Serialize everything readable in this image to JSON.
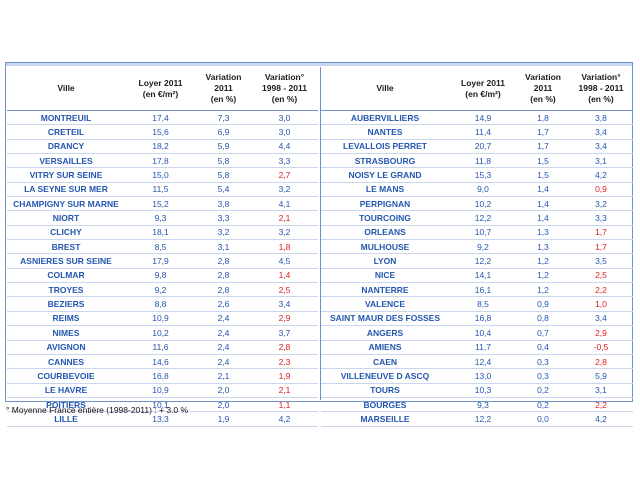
{
  "headers": {
    "ville": "Ville",
    "loyer": [
      "Loyer 2011",
      "(en €/m²)"
    ],
    "variation": [
      "Variation",
      "2011",
      "(en %)"
    ],
    "variation98": [
      "Variation°",
      "1998 - 2011",
      "(en %)"
    ]
  },
  "colors": {
    "city": "#2456b0",
    "negative_or_low": "#e21b1b",
    "border": "#6f90c8"
  },
  "left_rows": [
    {
      "city": "MONTREUIL",
      "loyer": "17,4",
      "var": "7,3",
      "var98": "3,0",
      "color": "dark"
    },
    {
      "city": "CRETEIL",
      "loyer": "15,6",
      "var": "6,9",
      "var98": "3,0",
      "color": "dark"
    },
    {
      "city": "DRANCY",
      "loyer": "18,2",
      "var": "5,9",
      "var98": "4,4",
      "color": "dark"
    },
    {
      "city": "VERSAILLES",
      "loyer": "17,8",
      "var": "5,8",
      "var98": "3,3",
      "color": "dark"
    },
    {
      "city": "VITRY SUR SEINE",
      "loyer": "15,0",
      "var": "5,8",
      "var98": "2,7",
      "color": "red"
    },
    {
      "city": "LA SEYNE SUR MER",
      "loyer": "11,5",
      "var": "5,4",
      "var98": "3,2",
      "color": "dark"
    },
    {
      "city": "CHAMPIGNY SUR MARNE",
      "loyer": "15,2",
      "var": "3,8",
      "var98": "4,1",
      "color": "dark"
    },
    {
      "city": "NIORT",
      "loyer": "9,3",
      "var": "3,3",
      "var98": "2,1",
      "color": "red"
    },
    {
      "city": "CLICHY",
      "loyer": "18,1",
      "var": "3,2",
      "var98": "3,2",
      "color": "dark"
    },
    {
      "city": "BREST",
      "loyer": "8,5",
      "var": "3,1",
      "var98": "1,8",
      "color": "red"
    },
    {
      "city": "ASNIERES SUR SEINE",
      "loyer": "17,9",
      "var": "2,8",
      "var98": "4,5",
      "color": "dark"
    },
    {
      "city": "COLMAR",
      "loyer": "9,8",
      "var": "2,8",
      "var98": "1,4",
      "color": "red"
    },
    {
      "city": "TROYES",
      "loyer": "9,2",
      "var": "2,8",
      "var98": "2,5",
      "color": "red"
    },
    {
      "city": "BEZIERS",
      "loyer": "8,8",
      "var": "2,6",
      "var98": "3,4",
      "color": "dark"
    },
    {
      "city": "REIMS",
      "loyer": "10,9",
      "var": "2,4",
      "var98": "2,9",
      "color": "red"
    },
    {
      "city": "NIMES",
      "loyer": "10,2",
      "var": "2,4",
      "var98": "3,7",
      "color": "dark"
    },
    {
      "city": "AVIGNON",
      "loyer": "11,6",
      "var": "2,4",
      "var98": "2,8",
      "color": "red"
    },
    {
      "city": "CANNES",
      "loyer": "14,6",
      "var": "2,4",
      "var98": "2,3",
      "color": "red"
    },
    {
      "city": "COURBEVOIE",
      "loyer": "16,8",
      "var": "2,1",
      "var98": "1,9",
      "color": "red"
    },
    {
      "city": "LE HAVRE",
      "loyer": "10,9",
      "var": "2,0",
      "var98": "2,1",
      "color": "red"
    },
    {
      "city": "POITIERS",
      "loyer": "10,1",
      "var": "2,0",
      "var98": "1,1",
      "color": "red"
    },
    {
      "city": "LILLE",
      "loyer": "13,3",
      "var": "1,9",
      "var98": "4,2",
      "color": "dark"
    }
  ],
  "right_rows": [
    {
      "city": "AUBERVILLIERS",
      "loyer": "14,9",
      "var": "1,8",
      "var98": "3,8",
      "color": "dark"
    },
    {
      "city": "NANTES",
      "loyer": "11,4",
      "var": "1,7",
      "var98": "3,4",
      "color": "dark"
    },
    {
      "city": "LEVALLOIS PERRET",
      "loyer": "20,7",
      "var": "1,7",
      "var98": "3,4",
      "color": "dark"
    },
    {
      "city": "STRASBOURG",
      "loyer": "11,8",
      "var": "1,5",
      "var98": "3,1",
      "color": "dark"
    },
    {
      "city": "NOISY LE GRAND",
      "loyer": "15,3",
      "var": "1,5",
      "var98": "4,2",
      "color": "dark"
    },
    {
      "city": "LE MANS",
      "loyer": "9,0",
      "var": "1,4",
      "var98": "0,9",
      "color": "red"
    },
    {
      "city": "PERPIGNAN",
      "loyer": "10,2",
      "var": "1,4",
      "var98": "3,2",
      "color": "dark"
    },
    {
      "city": "TOURCOING",
      "loyer": "12,2",
      "var": "1,4",
      "var98": "3,3",
      "color": "dark"
    },
    {
      "city": "ORLEANS",
      "loyer": "10,7",
      "var": "1,3",
      "var98": "1,7",
      "color": "red"
    },
    {
      "city": "MULHOUSE",
      "loyer": "9,2",
      "var": "1,3",
      "var98": "1,7",
      "color": "red"
    },
    {
      "city": "LYON",
      "loyer": "12,2",
      "var": "1,2",
      "var98": "3,5",
      "color": "dark"
    },
    {
      "city": "NICE",
      "loyer": "14,1",
      "var": "1,2",
      "var98": "2,5",
      "color": "red"
    },
    {
      "city": "NANTERRE",
      "loyer": "16,1",
      "var": "1,2",
      "var98": "2,2",
      "color": "red"
    },
    {
      "city": "VALENCE",
      "loyer": "8,5",
      "var": "0,9",
      "var98": "1,0",
      "color": "red"
    },
    {
      "city": "SAINT MAUR DES FOSSES",
      "loyer": "16,8",
      "var": "0,8",
      "var98": "3,4",
      "color": "dark"
    },
    {
      "city": "ANGERS",
      "loyer": "10,4",
      "var": "0,7",
      "var98": "2,9",
      "color": "red"
    },
    {
      "city": "AMIENS",
      "loyer": "11,7",
      "var": "0,4",
      "var98": "-0,5",
      "color": "red"
    },
    {
      "city": "CAEN",
      "loyer": "12,4",
      "var": "0,3",
      "var98": "2,8",
      "color": "red"
    },
    {
      "city": "VILLENEUVE D ASCQ",
      "loyer": "13,0",
      "var": "0,3",
      "var98": "5,9",
      "color": "dark"
    },
    {
      "city": "TOURS",
      "loyer": "10,3",
      "var": "0,2",
      "var98": "3,1",
      "color": "dark"
    },
    {
      "city": "BOURGES",
      "loyer": "9,3",
      "var": "0,2",
      "var98": "2,2",
      "color": "red"
    },
    {
      "city": "MARSEILLE",
      "loyer": "12,2",
      "var": "0,0",
      "var98": "4,2",
      "color": "dark"
    }
  ],
  "footnote": "° Moyenne France entière (1998-2011) : + 3.0 %"
}
